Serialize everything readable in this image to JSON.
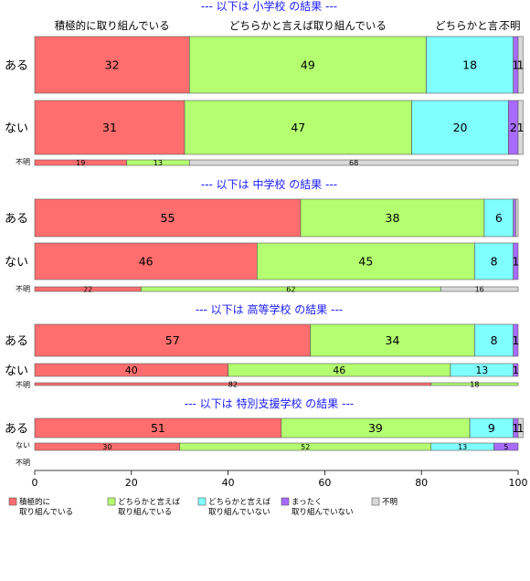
{
  "colors": {
    "active": "#FF6E6E",
    "somewhat_active": "#B3FF70",
    "somewhat_inactive": "#80FFFF",
    "not_active": "#A86BFF",
    "unknown": "#D9D9D9",
    "section_title": "#1A1AFF"
  },
  "header_labels": [
    "積極的に取り組んでいる",
    "どちらかと言えば取り組んでいる",
    "どちらかと言...",
    "不明"
  ],
  "legend": [
    {
      "lines": [
        "積極的に",
        "取り組んでいる"
      ],
      "color_key": "active"
    },
    {
      "lines": [
        "どちらかと言えば",
        "取り組んでいる"
      ],
      "color_key": "somewhat_active"
    },
    {
      "lines": [
        "どちらかと言えば",
        "取り組んでいない"
      ],
      "color_key": "somewhat_inactive"
    },
    {
      "lines": [
        "まったく",
        "取り組んでいない"
      ],
      "color_key": "not_active"
    },
    {
      "lines": [
        "不明"
      ],
      "color_key": "unknown"
    }
  ],
  "chart_data": {
    "type": "bar",
    "orientation": "horizontal",
    "stacked": true,
    "xlim": [
      0,
      100
    ],
    "x_ticks": [
      0,
      20,
      40,
      60,
      80,
      100
    ],
    "series": [
      "積極的に取り組んでいる",
      "どちらかと言えば取り組んでいる",
      "どちらかと言えば取り組んでいない",
      "まったく取り組んでいない",
      "不明"
    ],
    "panels": [
      {
        "title": "--- 以下は 小学校 の結果 ---",
        "rows": [
          {
            "label": "ある",
            "values": [
              32,
              49,
              18,
              1,
              1
            ],
            "weight": 1.0
          },
          {
            "label": "ない",
            "values": [
              31,
              47,
              20,
              2,
              1
            ],
            "weight": 1.0
          },
          {
            "label": "不明",
            "values": [
              19,
              13,
              0,
              0,
              68
            ],
            "weight": 0.2
          }
        ]
      },
      {
        "title": "--- 以下は 中学校 の結果 ---",
        "rows": [
          {
            "label": "ある",
            "values": [
              55,
              38,
              6,
              0.5,
              0
            ],
            "weight": 1.0
          },
          {
            "label": "ない",
            "values": [
              46,
              45,
              8,
              1,
              0
            ],
            "weight": 1.0
          },
          {
            "label": "不明",
            "values": [
              22,
              62,
              0,
              0,
              16
            ],
            "weight": 0.2
          }
        ]
      },
      {
        "title": "--- 以下は 高等学校 の結果 ---",
        "rows": [
          {
            "label": "ある",
            "values": [
              57,
              34,
              8,
              1,
              0
            ],
            "weight": 1.0
          },
          {
            "label": "ない",
            "values": [
              40,
              46,
              13,
              1,
              0
            ],
            "weight": 0.5
          },
          {
            "label": "不明",
            "values": [
              82,
              18,
              0,
              0,
              0
            ],
            "weight": 0.1
          }
        ]
      },
      {
        "title": "--- 以下は 特別支援学校 の結果 ---",
        "rows": [
          {
            "label": "ある",
            "values": [
              51,
              39,
              9,
              1,
              1
            ],
            "weight": 1.0
          },
          {
            "label": "ない",
            "values": [
              30,
              52,
              13,
              5,
              0
            ],
            "weight": 0.3
          },
          {
            "label": "不明",
            "values": [
              0,
              0,
              0,
              0,
              0
            ],
            "weight": 0.0
          }
        ]
      }
    ]
  }
}
